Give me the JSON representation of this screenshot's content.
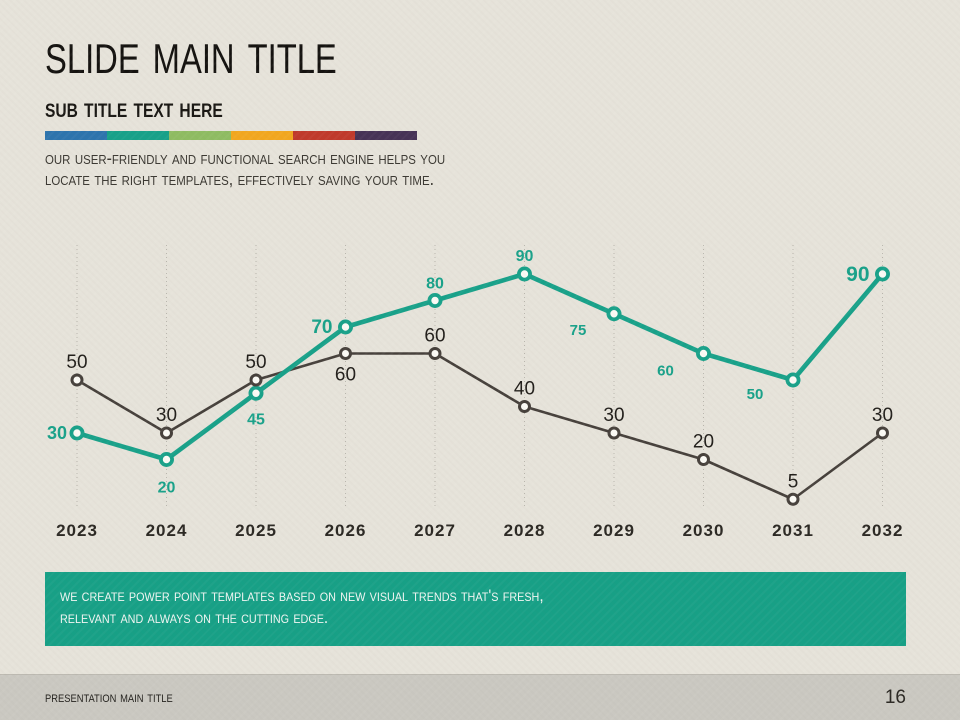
{
  "header": {
    "title": "Slide Main Title",
    "subtitle": "Sub Title Text Here",
    "stripe_colors": [
      "#2d74ad",
      "#17a189",
      "#8fbc62",
      "#f2a71f",
      "#c0392b",
      "#463256"
    ],
    "intro_line1": "Our user-friendly and functional search engine helps you",
    "intro_line2": "locate the right templates, effectively saving your time."
  },
  "chart_data": {
    "type": "line",
    "title": "",
    "xlabel": "",
    "ylabel": "",
    "categories": [
      "2023",
      "2024",
      "2025",
      "2026",
      "2027",
      "2028",
      "2029",
      "2030",
      "2031",
      "2032"
    ],
    "series": [
      {
        "name": "dark-series",
        "color": "#46403b",
        "line_width": 2.6,
        "marker": {
          "r": 5,
          "stroke_width": 3,
          "fill": "#fbfaf5"
        },
        "label_color": "#211e1a",
        "label_size": 19,
        "label_weight": "normal",
        "values": [
          50,
          30,
          50,
          60,
          60,
          40,
          30,
          20,
          5,
          30
        ],
        "labels": [
          {
            "dy": -12
          },
          {
            "dy": -12
          },
          {
            "dy": -12
          },
          {
            "dy": 27
          },
          {
            "dy": -12
          },
          {
            "dy": -12
          },
          {
            "dy": -12
          },
          {
            "dy": -12
          },
          {
            "dy": -12
          },
          {
            "dy": -12
          }
        ]
      },
      {
        "name": "teal-series",
        "color": "#18a189",
        "line_width": 4.6,
        "marker": {
          "r": 5.6,
          "stroke_width": 3.8,
          "fill": "#fbfaf5"
        },
        "label_color": "#18a189",
        "label_size": 16,
        "label_weight": "bold",
        "values": [
          30,
          20,
          45,
          70,
          80,
          90,
          75,
          60,
          50,
          90
        ],
        "labels": [
          {
            "dx": -10,
            "dy": 6,
            "anchor": "end",
            "size": 18
          },
          {
            "dy": 33
          },
          {
            "dy": 31
          },
          {
            "dx": -13,
            "dy": 6,
            "anchor": "end",
            "size": 19
          },
          {
            "dy": -12
          },
          {
            "dy": -13
          },
          {
            "dx": -36,
            "dy": 21,
            "size": 15
          },
          {
            "dx": -38,
            "dy": 22,
            "size": 15
          },
          {
            "dx": -38,
            "dy": 19,
            "size": 15
          },
          {
            "dx": -13,
            "dy": 7,
            "anchor": "end",
            "size": 21
          }
        ]
      }
    ],
    "ylim": [
      0,
      100
    ],
    "grid": "vertical-dotted",
    "grid_color": "#b9b6ad",
    "legend": "none",
    "axis_label_color": "#2b2823"
  },
  "banner": {
    "line1": "We create power point templates based on new visual trends that's fresh,",
    "line2": "relevant and always on the cutting edge.",
    "bg_color": "#17a086",
    "text_color": "#f1f6f3"
  },
  "footer": {
    "title": "Presentation Main Title",
    "page_number": "16"
  },
  "colors": {
    "background": "#e6e3da",
    "footer_band": "#cac8c1",
    "accent_teal": "#18a189",
    "dark_text": "#14120f"
  }
}
